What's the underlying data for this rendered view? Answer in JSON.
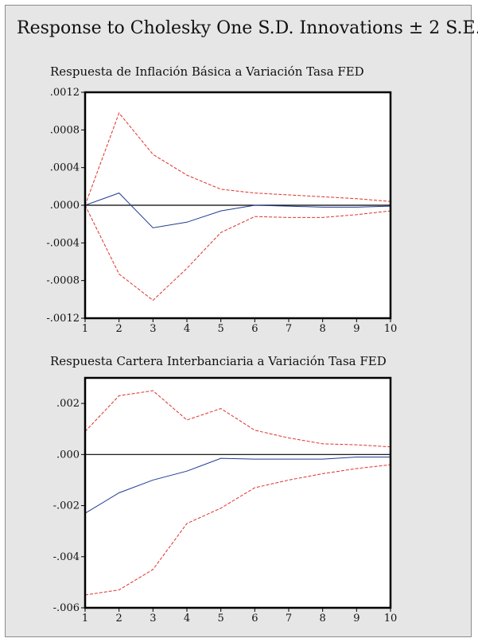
{
  "figure": {
    "title": "Response to Cholesky One S.D. Innovations ± 2 S.E."
  },
  "chart_data": [
    {
      "type": "line",
      "title": "Respuesta de Inflación Básica a Variación Tasa FED",
      "x": [
        1,
        2,
        3,
        4,
        5,
        6,
        7,
        8,
        9,
        10
      ],
      "xticks": [
        "1",
        "2",
        "3",
        "4",
        "5",
        "6",
        "7",
        "8",
        "9",
        "10"
      ],
      "ylim": [
        -0.0012,
        0.0012
      ],
      "yticks": [
        -0.0012,
        -0.0008,
        -0.0004,
        0.0,
        0.0004,
        0.0008,
        0.0012
      ],
      "ytick_labels": [
        "-.0012",
        "-.0008",
        "-.0004",
        ".0000",
        ".0004",
        ".0008",
        ".0012"
      ],
      "series": [
        {
          "role": "response",
          "color": "#1f3a93",
          "style": "solid",
          "values": [
            0.0,
            0.00013,
            -0.00024,
            -0.00018,
            -6e-05,
            0.0,
            -1e-05,
            -2e-05,
            -2e-05,
            -1e-05
          ]
        },
        {
          "role": "upper-band",
          "color": "#e0302a",
          "style": "dashed",
          "values": [
            0.0,
            0.00098,
            0.00054,
            0.00032,
            0.00017,
            0.00013,
            0.00011,
            9e-05,
            7e-05,
            4e-05
          ]
        },
        {
          "role": "lower-band",
          "color": "#e0302a",
          "style": "dashed",
          "values": [
            0.0,
            -0.00073,
            -0.00101,
            -0.00067,
            -0.00029,
            -0.00012,
            -0.00013,
            -0.00013,
            -0.0001,
            -6e-05
          ]
        }
      ],
      "zero_line": true,
      "grid": false
    },
    {
      "type": "line",
      "title": "Respuesta Cartera Interbanciaria a Variación Tasa FED",
      "x": [
        1,
        2,
        3,
        4,
        5,
        6,
        7,
        8,
        9,
        10
      ],
      "xticks": [
        "1",
        "2",
        "3",
        "4",
        "5",
        "6",
        "7",
        "8",
        "9",
        "10"
      ],
      "ylim": [
        -0.006,
        0.003
      ],
      "yticks": [
        -0.006,
        -0.004,
        -0.002,
        0.0,
        0.002
      ],
      "ytick_labels": [
        "-.006",
        "-.004",
        "-.002",
        ".000",
        ".002"
      ],
      "series": [
        {
          "role": "response",
          "color": "#1f3a93",
          "style": "solid",
          "values": [
            -0.0023,
            -0.0015,
            -0.001,
            -0.00065,
            -0.00015,
            -0.00018,
            -0.00018,
            -0.00018,
            -0.0001,
            -0.0001
          ]
        },
        {
          "role": "upper-band",
          "color": "#e0302a",
          "style": "dashed",
          "values": [
            0.0009,
            0.0023,
            0.0025,
            0.00135,
            0.0018,
            0.00095,
            0.00065,
            0.00042,
            0.00038,
            0.0003
          ]
        },
        {
          "role": "lower-band",
          "color": "#e0302a",
          "style": "dashed",
          "values": [
            -0.0055,
            -0.0053,
            -0.0045,
            -0.0027,
            -0.0021,
            -0.0013,
            -0.001,
            -0.00075,
            -0.00055,
            -0.0004
          ]
        }
      ],
      "zero_line": true,
      "grid": false
    }
  ]
}
